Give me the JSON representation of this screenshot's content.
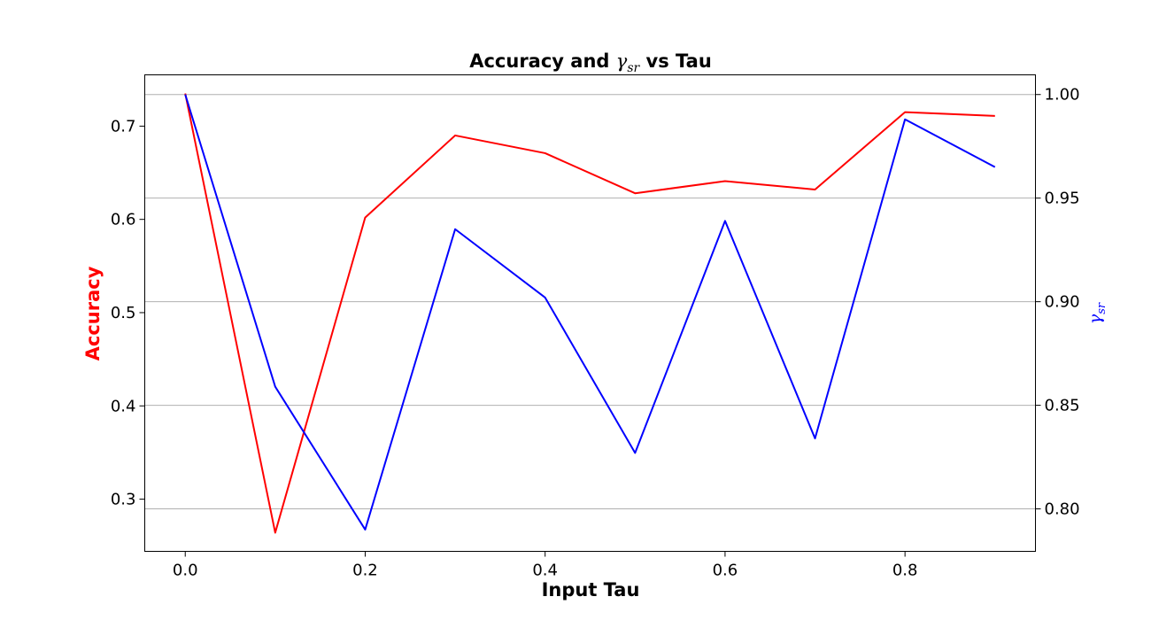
{
  "chart_data": {
    "type": "line",
    "title": {
      "prefix": "Accuracy and ",
      "symbol": "γ",
      "subscript": "sr",
      "suffix": " vs Tau"
    },
    "xlabel": "Input Tau",
    "ylabel_left": "Accuracy",
    "ylabel_right": {
      "symbol": "γ",
      "subscript": "sr"
    },
    "x": [
      0.0,
      0.1,
      0.2,
      0.3,
      0.4,
      0.5,
      0.6,
      0.7,
      0.8,
      0.9
    ],
    "x_ticks": [
      "0.0",
      "0.2",
      "0.4",
      "0.6",
      "0.8"
    ],
    "x_tick_values": [
      0.0,
      0.2,
      0.4,
      0.6,
      0.8
    ],
    "xlim": [
      -0.045,
      0.945
    ],
    "y_left_ticks": [
      "0.3",
      "0.4",
      "0.5",
      "0.6",
      "0.7"
    ],
    "y_left_tick_values": [
      0.3,
      0.4,
      0.5,
      0.6,
      0.7
    ],
    "ylim_left": [
      0.244,
      0.755
    ],
    "y_right_ticks": [
      "0.80",
      "0.85",
      "0.90",
      "0.95",
      "1.00"
    ],
    "y_right_tick_values": [
      0.8,
      0.85,
      0.9,
      0.95,
      1.0
    ],
    "ylim_right": [
      0.7795,
      1.0095
    ],
    "grid": "horizontal-right-axis",
    "series": [
      {
        "axis": "left",
        "color": "#ff0000",
        "values": [
          0.735,
          0.264,
          0.602,
          0.69,
          0.671,
          0.628,
          0.641,
          0.632,
          0.715,
          0.711
        ]
      },
      {
        "axis": "right",
        "color": "#0000ff",
        "values": [
          1.0,
          0.859,
          0.79,
          0.935,
          0.902,
          0.827,
          0.939,
          0.834,
          0.988,
          0.965
        ]
      }
    ],
    "colors": {
      "left_label": "#ff0000",
      "right_label": "#0000ff",
      "grid": "#b0b0b0"
    }
  }
}
